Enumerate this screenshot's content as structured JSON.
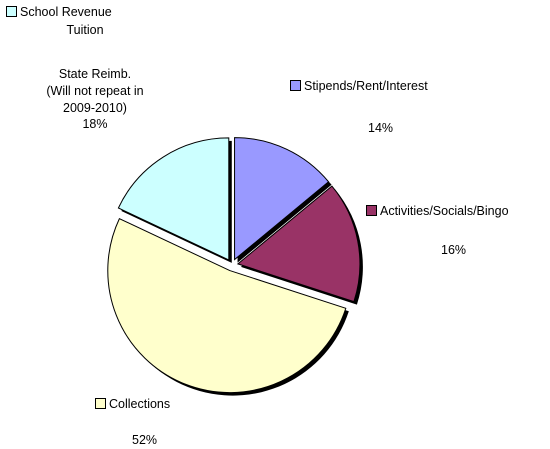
{
  "chart_data": {
    "type": "pie",
    "slices": [
      {
        "label": "Stipends/Rent/Interest",
        "value": 14,
        "pct_label": "14%",
        "color": "#9999FF"
      },
      {
        "label": "Activities/Socials/Bingo",
        "value": 16,
        "pct_label": "16%",
        "color": "#993366"
      },
      {
        "label": "Collections",
        "value": 52,
        "pct_label": "52%",
        "color": "#FFFFCC"
      },
      {
        "label": "School Revenue Tuition State Reimb. (Will not repeat in 2009-2010)",
        "value": 18,
        "pct_label": "18%",
        "color": "#CCFFFF"
      }
    ],
    "school_label_lines": [
      "School Revenue",
      "Tuition",
      "State Reimb.",
      "(Will not repeat in",
      "2009-2010)"
    ]
  }
}
